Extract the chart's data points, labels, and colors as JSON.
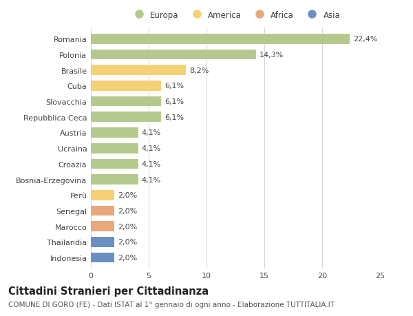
{
  "countries": [
    "Romania",
    "Polonia",
    "Brasile",
    "Cuba",
    "Slovacchia",
    "Repubblica Ceca",
    "Austria",
    "Ucraina",
    "Croazia",
    "Bosnia-Erzegovina",
    "Perù",
    "Senegal",
    "Marocco",
    "Thailandia",
    "Indonesia"
  ],
  "values": [
    22.4,
    14.3,
    8.2,
    6.1,
    6.1,
    6.1,
    4.1,
    4.1,
    4.1,
    4.1,
    2.0,
    2.0,
    2.0,
    2.0,
    2.0
  ],
  "labels": [
    "22,4%",
    "14,3%",
    "8,2%",
    "6,1%",
    "6,1%",
    "6,1%",
    "4,1%",
    "4,1%",
    "4,1%",
    "4,1%",
    "2,0%",
    "2,0%",
    "2,0%",
    "2,0%",
    "2,0%"
  ],
  "categories": [
    "Europa",
    "America",
    "Africa",
    "Asia"
  ],
  "continent": [
    "Europa",
    "Europa",
    "America",
    "America",
    "Europa",
    "Europa",
    "Europa",
    "Europa",
    "Europa",
    "Europa",
    "America",
    "Africa",
    "Africa",
    "Asia",
    "Asia"
  ],
  "colors": {
    "Europa": "#b5c98e",
    "America": "#f5d176",
    "Africa": "#e8a87c",
    "Asia": "#6b8fc2"
  },
  "background_color": "#ffffff",
  "grid_color": "#d8d8d8",
  "xlim": [
    0,
    25
  ],
  "xticks": [
    0,
    5,
    10,
    15,
    20,
    25
  ],
  "title": "Cittadini Stranieri per Cittadinanza",
  "subtitle": "COMUNE DI GORO (FE) - Dati ISTAT al 1° gennaio di ogni anno - Elaborazione TUTTITALIA.IT",
  "bar_height": 0.65,
  "label_fontsize": 8,
  "tick_fontsize": 8,
  "title_fontsize": 10.5,
  "subtitle_fontsize": 7.5
}
